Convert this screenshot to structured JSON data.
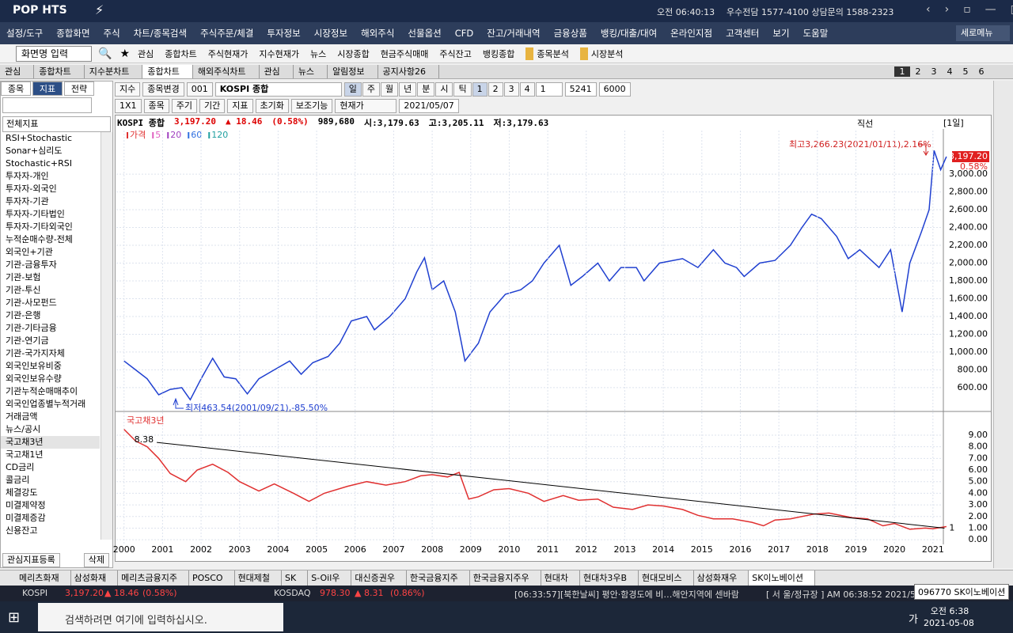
{
  "titlebar": {
    "logo": "POP HTS",
    "clock": "오전 06:40:13",
    "phone": "우수전담 1577-4100 상담문의 1588-2323"
  },
  "menu": [
    "설정/도구",
    "종합화면",
    "주식",
    "차트/종목검색",
    "주식주문/체결",
    "투자정보",
    "시장정보",
    "해외주식",
    "선물옵션",
    "CFD",
    "잔고/거래내역",
    "금융상품",
    "뱅킹/대출/대여",
    "온라인지점",
    "고객센터",
    "보기",
    "도움말"
  ],
  "menu_right": "세로메뉴",
  "toolbar": {
    "input": "화면명 입력",
    "buttons": [
      "관심",
      "종합차트",
      "주식현재가",
      "지수현재가",
      "뉴스",
      "시장종합",
      "현금주식매매",
      "주식잔고",
      "뱅킹종합"
    ],
    "folders": [
      "종목분석",
      "시장분석"
    ]
  },
  "tabs": [
    "관심",
    "종합차트",
    "지수분차트",
    "종합차트",
    "해외주식차트",
    "관심",
    "뉴스",
    "알림정보",
    "공지사항26"
  ],
  "tab_pages": [
    "1",
    "2",
    "3",
    "4",
    "5",
    "6"
  ],
  "left_panel": {
    "tabs": [
      "종목",
      "지표",
      "전략"
    ],
    "dropdown": "전체지표",
    "items": [
      "RSI+Stochastic",
      "Sonar+심리도",
      "Stochastic+RSI",
      "투자자-개인",
      "투자자-외국인",
      "투자자-기관",
      "투자자-기타법인",
      "투자자-기타외국인",
      "누적순매수량-전체",
      "외국인+기관",
      "기관-금융투자",
      "기관-보험",
      "기관-투신",
      "기관-사모펀드",
      "기관-은행",
      "기관-기타금융",
      "기관-연기금",
      "기관-국가지자체",
      "외국인보유비중",
      "외국인보유수량",
      "기관누적순매매추이",
      "외국인업종별누적거래",
      "거래금액",
      "뉴스/공시",
      "국고채3년",
      "국고채1년",
      "CD금리",
      "콜금리",
      "체결강도",
      "미결제약정",
      "미결제증감",
      "신용잔고"
    ],
    "buttons": [
      "관심지표등록",
      "삭제"
    ]
  },
  "chart_toolbar": {
    "row1": [
      "지수",
      "종목변경",
      "001",
      "KOSPI 종합"
    ],
    "periods": [
      "일",
      "주",
      "월",
      "년",
      "분",
      "시",
      "틱"
    ],
    "numbers": [
      "1",
      "2",
      "3",
      "4"
    ],
    "unit": "1",
    "count": "5241",
    "total": "6000",
    "row2": [
      "1X1",
      "종목",
      "주기",
      "기간",
      "지표"
    ],
    "buttons": [
      "초기화",
      "보조기능",
      "현재가"
    ],
    "date": "2021/05/07",
    "draw_tool": "직선",
    "period_label": "[1일]"
  },
  "chart_header": {
    "name": "KOSPI 종합",
    "price": "3,197.20",
    "change": "▲ 18.46",
    "rate": "(0.58%)",
    "volume": "989,680",
    "open": "시:3,179.63",
    "high": "고:3,205.11",
    "low": "저:3,179.63"
  },
  "chart_data": [
    {
      "type": "line",
      "legend": [
        {
          "label": "가격",
          "color": "#e03030"
        },
        {
          "label": "5",
          "color": "#e060c0"
        },
        {
          "label": "20",
          "color": "#a040c0"
        },
        {
          "label": "60",
          "color": "#3070e0"
        },
        {
          "label": "120",
          "color": "#20a0a0"
        }
      ],
      "x": [
        2000.0,
        2000.3,
        2000.6,
        2000.9,
        2001.2,
        2001.5,
        2001.72,
        2002.0,
        2002.3,
        2002.6,
        2002.9,
        2003.2,
        2003.5,
        2003.9,
        2004.3,
        2004.6,
        2004.9,
        2005.3,
        2005.6,
        2005.9,
        2006.3,
        2006.5,
        2006.9,
        2007.3,
        2007.6,
        2007.8,
        2008.0,
        2008.3,
        2008.6,
        2008.85,
        2009.2,
        2009.5,
        2009.9,
        2010.3,
        2010.6,
        2010.9,
        2011.3,
        2011.6,
        2011.9,
        2012.3,
        2012.6,
        2012.9,
        2013.3,
        2013.5,
        2013.9,
        2014.5,
        2014.9,
        2015.3,
        2015.6,
        2015.9,
        2016.1,
        2016.5,
        2016.9,
        2017.3,
        2017.6,
        2017.85,
        2018.1,
        2018.5,
        2018.8,
        2019.1,
        2019.6,
        2019.9,
        2020.2,
        2020.4,
        2020.7,
        2020.9,
        2021.03,
        2021.2,
        2021.35
      ],
      "series": [
        {
          "color": "#2040d0",
          "values": [
            900,
            800,
            700,
            520,
            580,
            600,
            463.54,
            700,
            930,
            720,
            700,
            530,
            700,
            800,
            900,
            750,
            880,
            950,
            1100,
            1350,
            1400,
            1250,
            1400,
            1600,
            1900,
            2060,
            1700,
            1800,
            1450,
            900,
            1100,
            1450,
            1650,
            1700,
            1800,
            2000,
            2200,
            1750,
            1850,
            2000,
            1800,
            1950,
            1950,
            1800,
            2000,
            2050,
            1950,
            2150,
            2000,
            1950,
            1850,
            2000,
            2030,
            2200,
            2400,
            2550,
            2500,
            2300,
            2050,
            2150,
            1950,
            2150,
            1450,
            2000,
            2350,
            2600,
            3266.23,
            3050,
            3197.2
          ]
        }
      ],
      "xlim": [
        1999.8,
        2021.25
      ],
      "ylim": [
        350,
        3490
      ],
      "yticks": [
        {
          "value": 600,
          "label": "600.00"
        },
        {
          "value": 800,
          "label": "800.00"
        },
        {
          "value": 1000,
          "label": "1,000.00"
        },
        {
          "value": 1200,
          "label": "1,200.00"
        },
        {
          "value": 1400,
          "label": "1,400.00"
        },
        {
          "value": 1600,
          "label": "1,600.00"
        },
        {
          "value": 1800,
          "label": "1,800.00"
        },
        {
          "value": 2000,
          "label": "2,000.00"
        },
        {
          "value": 2200,
          "label": "2,200.00"
        },
        {
          "value": 2400,
          "label": "2,400.00"
        },
        {
          "value": 2600,
          "label": "2,600.00"
        },
        {
          "value": 2800,
          "label": "2,800.00"
        },
        {
          "value": 3000,
          "label": "3,000.00"
        }
      ],
      "grid": true,
      "last_label": "3,197.20",
      "last_change": "0.58%",
      "annotations": [
        "최고3,266.23(2021/01/11),2.16%",
        "최저463.54(2001/09/21),-85.50%"
      ]
    },
    {
      "type": "line",
      "title": "국고채3년",
      "x": [
        2000.0,
        2000.3,
        2000.6,
        2000.9,
        2001.2,
        2001.6,
        2001.9,
        2002.3,
        2002.7,
        2003.0,
        2003.5,
        2003.9,
        2004.4,
        2004.8,
        2005.2,
        2005.8,
        2006.3,
        2006.8,
        2007.3,
        2007.7,
        2008.0,
        2008.4,
        2008.7,
        2008.95,
        2009.2,
        2009.6,
        2010.0,
        2010.5,
        2010.9,
        2011.4,
        2011.8,
        2012.3,
        2012.7,
        2013.2,
        2013.6,
        2014.0,
        2014.5,
        2014.9,
        2015.3,
        2015.8,
        2016.3,
        2016.6,
        2016.9,
        2017.3,
        2017.9,
        2018.3,
        2018.9,
        2019.3,
        2019.7,
        2020.0,
        2020.4,
        2020.8,
        2021.0,
        2021.35
      ],
      "series": [
        {
          "color": "#e03030",
          "values": [
            9.5,
            8.5,
            8.0,
            7.0,
            5.7,
            5.0,
            6.0,
            6.5,
            5.8,
            5.0,
            4.2,
            4.8,
            4.0,
            3.3,
            4.0,
            4.6,
            5.0,
            4.7,
            5.0,
            5.5,
            5.6,
            5.4,
            5.8,
            3.5,
            3.7,
            4.3,
            4.4,
            4.0,
            3.3,
            3.8,
            3.4,
            3.5,
            2.8,
            2.6,
            3.0,
            2.9,
            2.6,
            2.1,
            1.8,
            1.8,
            1.5,
            1.2,
            1.7,
            1.8,
            2.2,
            2.3,
            1.9,
            1.8,
            1.2,
            1.4,
            0.9,
            1.0,
            0.95,
            1.13
          ]
        }
      ],
      "trendline": {
        "x": [
          2000.85,
          2021.3
        ],
        "values": [
          8.38,
          1
        ]
      },
      "xlim": [
        1999.8,
        2021.25
      ],
      "ylim": [
        -0.4,
        10.7
      ],
      "xticks": [
        2000,
        2001,
        2002,
        2003,
        2004,
        2005,
        2006,
        2007,
        2008,
        2009,
        2010,
        2011,
        2012,
        2013,
        2014,
        2015,
        2016,
        2017,
        2018,
        2019,
        2020,
        2021
      ],
      "yticks": [
        {
          "value": 0,
          "label": "0.00"
        },
        {
          "value": 1,
          "label": "1.00"
        },
        {
          "value": 2,
          "label": "2.00"
        },
        {
          "value": 3,
          "label": "3.00"
        },
        {
          "value": 4,
          "label": "4.00"
        },
        {
          "value": 5,
          "label": "5.00"
        },
        {
          "value": 6,
          "label": "6.00"
        },
        {
          "value": 7,
          "label": "7.00"
        },
        {
          "value": 8,
          "label": "8.00"
        },
        {
          "value": 9,
          "label": "9.00"
        }
      ],
      "grid": true
    }
  ],
  "stock_tabs": [
    "메리츠화재",
    "삼성화재",
    "메리츠금융지주",
    "POSCO",
    "현대제철",
    "SK",
    "S-Oil우",
    "대신증권우",
    "한국금융지주",
    "한국금융지주우",
    "현대차",
    "현대차3우B",
    "현대모비스",
    "삼성화재우",
    "SK이노베이션"
  ],
  "ticker": {
    "kospi": "KOSPI",
    "kospi_price": "3,197.20",
    "kospi_change": "▲ 18.46",
    "kospi_rate": "(0.58%)",
    "kosdaq": "KOSDAQ",
    "kosdaq_price": "978.30",
    "kosdaq_change": "▲ 8.31",
    "kosdaq_rate": "(0.86%)",
    "news": "[06:33:57][북한날씨] 평안·함경도에 비…해안지역에 센바람",
    "market": "[ 서 울/정규장 ] AM 06:38:52  2021/5/",
    "tooltip": "096770 SK이노베이션"
  },
  "taskbar": {
    "search": "검색하려면 여기에 입력하십시오.",
    "time": "오전 6:38",
    "date": "2021-05-08",
    "ime": "가"
  }
}
